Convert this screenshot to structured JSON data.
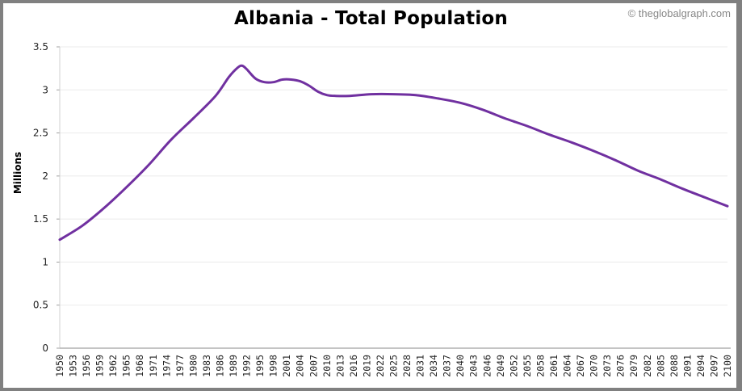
{
  "header": {
    "title": "Albania - Total Population",
    "credit": "© theglobalgraph.com"
  },
  "colors": {
    "line": "#7030a0",
    "grid": "#ebebeb",
    "axis": "#a0a0a0",
    "frame": "#808080"
  },
  "chart_data": {
    "type": "line",
    "title": "Albania - Total Population",
    "xlabel": "",
    "ylabel": "Millions",
    "ylim": [
      0,
      3.5
    ],
    "xlim": [
      1950,
      2100
    ],
    "yticks": [
      0,
      0.5,
      1,
      1.5,
      2,
      2.5,
      3,
      3.5
    ],
    "ytick_labels": [
      "0",
      "0.5",
      "1",
      "1.5",
      "2",
      "2.5",
      "3",
      "3.5"
    ],
    "xtick_labels": [
      "1950",
      "1953",
      "1956",
      "1959",
      "1962",
      "1965",
      "1968",
      "1971",
      "1974",
      "1977",
      "1980",
      "1983",
      "1986",
      "1989",
      "1992",
      "1995",
      "1998",
      "2001",
      "2004",
      "2007",
      "2010",
      "2013",
      "2016",
      "2019",
      "2022",
      "2025",
      "2028",
      "2031",
      "2034",
      "2037",
      "2040",
      "2043",
      "2046",
      "2049",
      "2052",
      "2055",
      "2058",
      "2061",
      "2064",
      "2067",
      "2070",
      "2073",
      "2076",
      "2079",
      "2082",
      "2085",
      "2088",
      "2091",
      "2094",
      "2097",
      "2100"
    ],
    "grid": true,
    "legend": null,
    "series": [
      {
        "name": "Total Population",
        "x": [
          1950,
          1955,
          1960,
          1965,
          1970,
          1975,
          1980,
          1985,
          1988,
          1990,
          1991,
          1992,
          1994,
          1996,
          1998,
          2000,
          2002,
          2004,
          2006,
          2008,
          2010,
          2012,
          2015,
          2020,
          2025,
          2030,
          2035,
          2040,
          2045,
          2050,
          2055,
          2060,
          2065,
          2070,
          2075,
          2080,
          2085,
          2090,
          2095,
          2100
        ],
        "values": [
          1.26,
          1.42,
          1.63,
          1.87,
          2.13,
          2.42,
          2.67,
          2.93,
          3.15,
          3.26,
          3.28,
          3.24,
          3.13,
          3.09,
          3.09,
          3.12,
          3.12,
          3.1,
          3.05,
          2.98,
          2.94,
          2.93,
          2.93,
          2.95,
          2.95,
          2.94,
          2.9,
          2.85,
          2.77,
          2.67,
          2.58,
          2.48,
          2.39,
          2.29,
          2.18,
          2.06,
          1.96,
          1.85,
          1.75,
          1.65
        ]
      }
    ]
  }
}
